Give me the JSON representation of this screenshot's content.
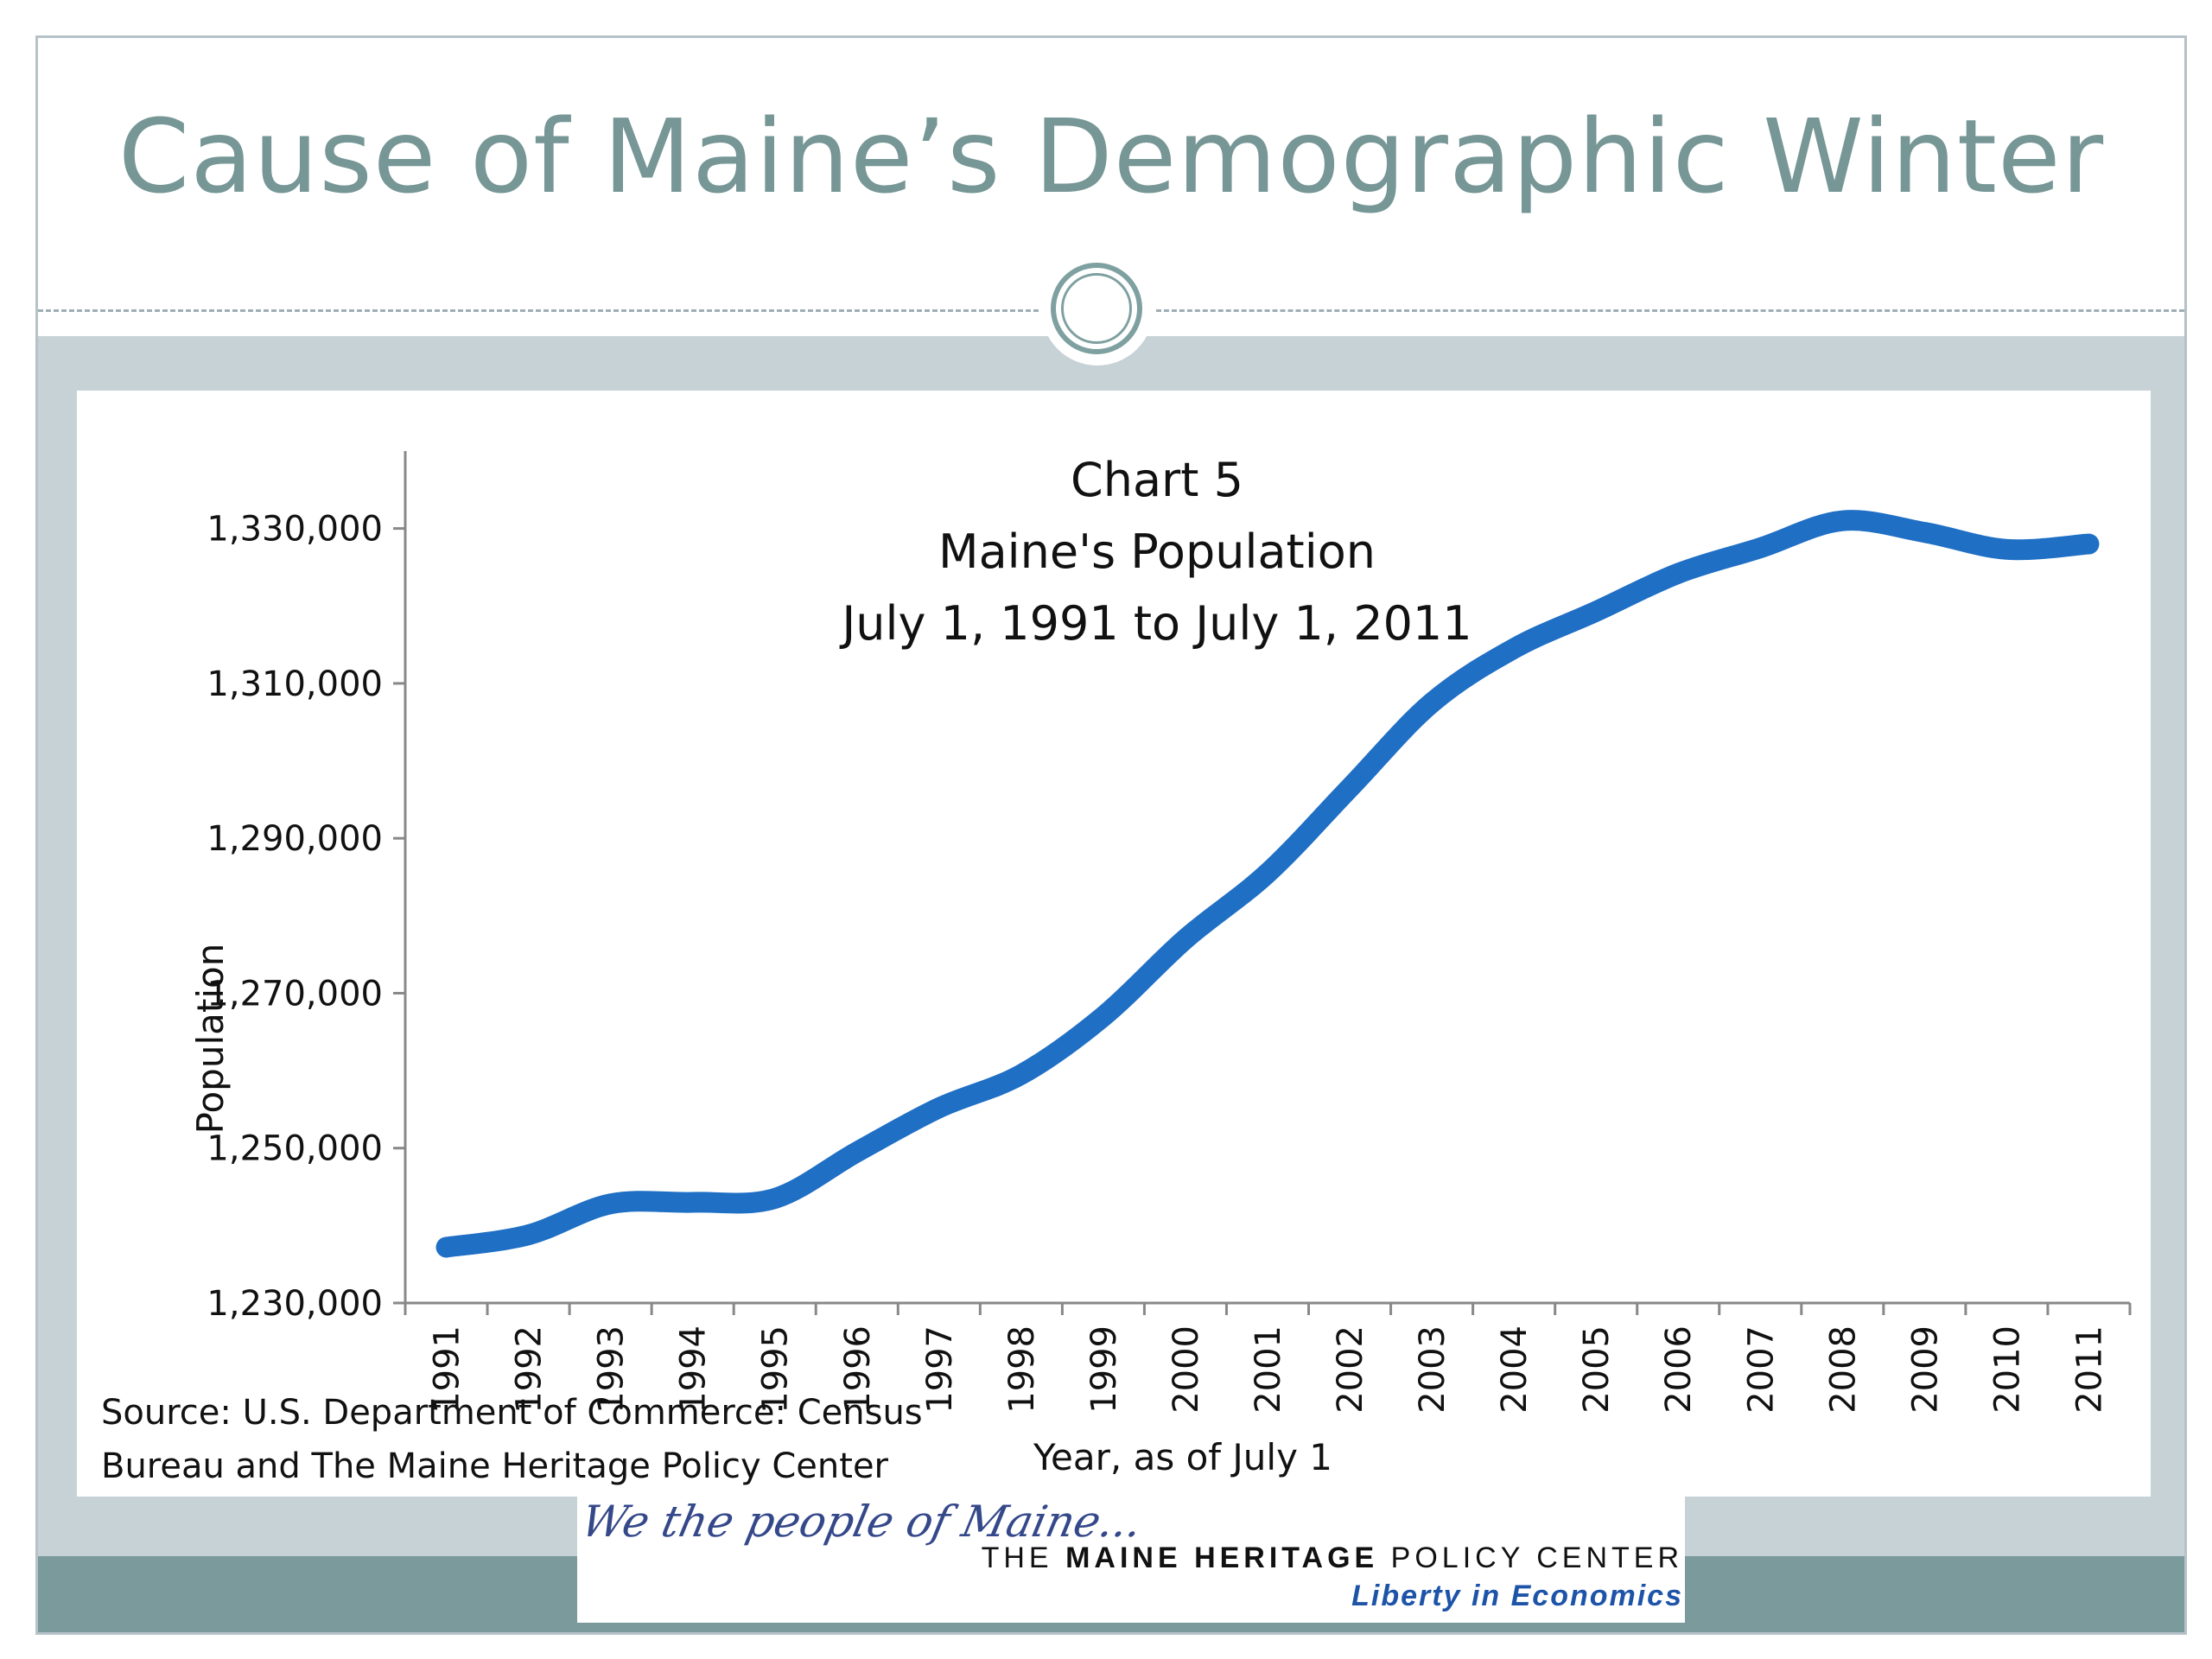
{
  "slide": {
    "title": "Cause of Maine’s Demographic Winter"
  },
  "source_note": {
    "line1": "Source: U.S. Department of Commerce: Census",
    "line2": "Bureau and The Maine Heritage Policy Center"
  },
  "logo": {
    "script": "We the people of Maine...",
    "name_prefix": "THE ",
    "name_bold": "MAINE HERITAGE",
    "name_suffix": " POLICY CENTER",
    "tagline": "Liberty in Economics"
  },
  "colors": {
    "title": "#779696",
    "band": "#c7d2d6",
    "bottom_band": "#7b9a9c",
    "line": "#1f6fc5"
  },
  "chart_data": {
    "type": "line",
    "title_lines": [
      "Chart 5",
      "Maine's Population",
      "July 1, 1991 to July 1, 2011"
    ],
    "xlabel": "Year, as of July 1",
    "ylabel": "Population",
    "categories": [
      "1991",
      "1992",
      "1993",
      "1994",
      "1995",
      "1996",
      "1997",
      "1998",
      "1999",
      "2000",
      "2001",
      "2002",
      "2003",
      "2004",
      "2005",
      "2006",
      "2007",
      "2008",
      "2009",
      "2010",
      "2011"
    ],
    "series": [
      {
        "values": [
          1237200,
          1238800,
          1242800,
          1243000,
          1243500,
          1249500,
          1255200,
          1259500,
          1267000,
          1277000,
          1285500,
          1296500,
          1307500,
          1314500,
          1319300,
          1324200,
          1327500,
          1331000,
          1329500,
          1327300,
          1328000
        ]
      }
    ],
    "yticks": [
      "1,230,000",
      "1,250,000",
      "1,270,000",
      "1,290,000",
      "1,310,000",
      "1,330,000"
    ],
    "ylim": [
      1230000,
      1340000
    ],
    "grid": false,
    "legend": "none"
  }
}
